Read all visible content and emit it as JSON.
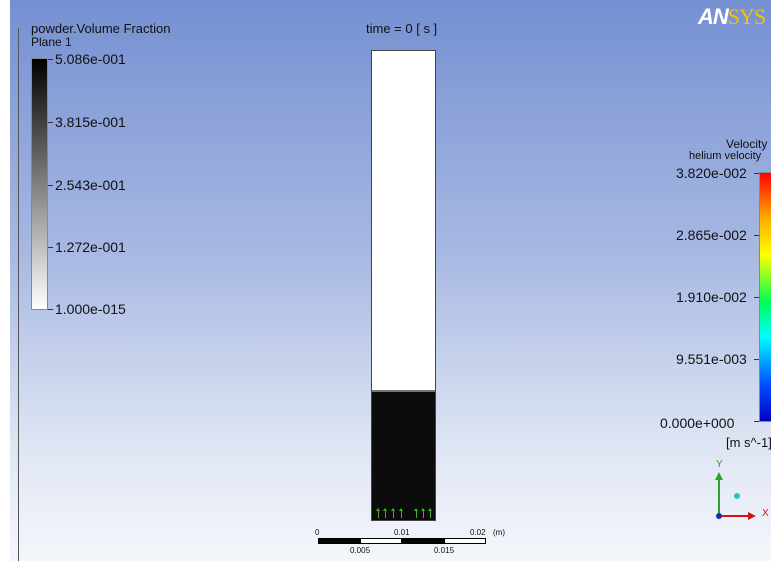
{
  "app": {
    "logo_main": "ANSYS"
  },
  "header": {
    "time_label": "time = 0 [ s ]"
  },
  "volume_fraction_legend": {
    "title": "powder.Volume Fraction",
    "subtitle": "Plane 1",
    "ticks": [
      "5.086e-001",
      "3.815e-001",
      "2.543e-001",
      "1.272e-001",
      "1.000e-015"
    ],
    "gradient_top_color": "#000000",
    "gradient_bottom_color": "#ffffff"
  },
  "velocity_legend": {
    "title": "Velocity",
    "subtitle": "helium velocity",
    "ticks": [
      "3.820e-002",
      "2.865e-002",
      "1.910e-002",
      "9.551e-003",
      "0.000e+000"
    ],
    "unit": "[m s^-1]"
  },
  "column": {
    "fill_fraction": 0.274,
    "powder_color": "#0c0c0c",
    "gas_color": "#ffffff",
    "vector_color": "#41b02a"
  },
  "scale_bar": {
    "top_labels": [
      "0",
      "0.01",
      "0.02",
      "(m)"
    ],
    "bottom_labels": [
      "0.005",
      "0.015"
    ]
  },
  "axes": {
    "x_label": "X",
    "y_label": "Y",
    "x_color": "#d01515",
    "y_color": "#2aa52a",
    "z_color": "#1a2ea8"
  }
}
